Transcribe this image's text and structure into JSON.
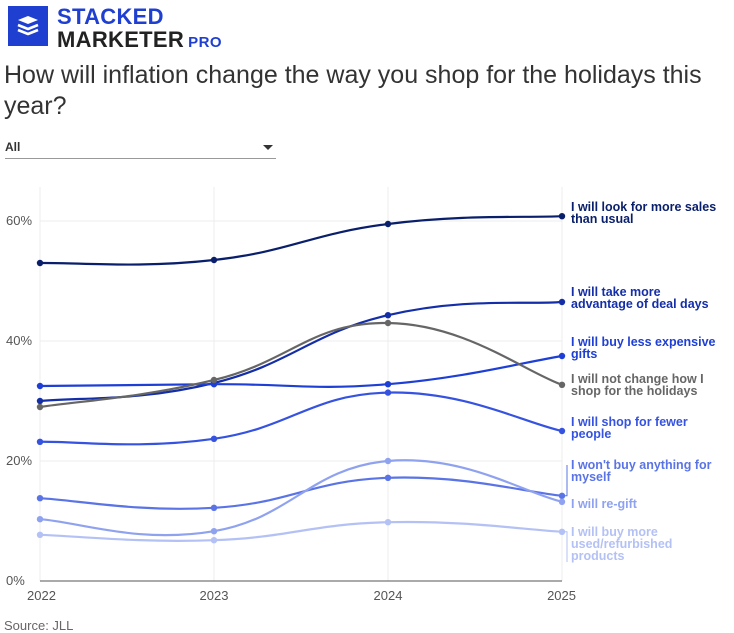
{
  "brand": {
    "line1": "STACKED",
    "line2": "MARKETER",
    "pro": "PRO"
  },
  "title": "How will inflation change the way you shop for the holidays this year?",
  "filter": {
    "selected": "All"
  },
  "source": "Source: JLL",
  "chart_data": {
    "type": "line",
    "title": "How will inflation change the way you shop for the holidays this year?",
    "xlabel": "",
    "ylabel": "",
    "x": [
      "2022",
      "2023",
      "2024",
      "2025"
    ],
    "ylim": [
      0,
      65
    ],
    "yticks": [
      0,
      20,
      40,
      60
    ],
    "ytick_labels": [
      "0%",
      "20%",
      "40%",
      "60%"
    ],
    "grid": true,
    "series": [
      {
        "name": "I will look for more sales than usual",
        "label_lines": [
          "I will look for more sales",
          "than usual"
        ],
        "color": "#0a1f6b",
        "values": [
          53,
          53.5,
          59.5,
          60.8
        ]
      },
      {
        "name": "I will take more advantage of deal days",
        "label_lines": [
          "I will take more",
          "advantage of deal days"
        ],
        "color": "#142ea8",
        "values": [
          30,
          33,
          44.3,
          46.5
        ]
      },
      {
        "name": "I will buy less expensive gifts",
        "label_lines": [
          "I will buy less expensive",
          "gifts"
        ],
        "color": "#1e3fd6",
        "values": [
          32.5,
          32.8,
          32.8,
          37.5
        ]
      },
      {
        "name": "I will not change how I shop for the holidays",
        "label_lines": [
          "I will not change how I",
          "shop for the holidays"
        ],
        "color": "#666666",
        "values": [
          29,
          33.5,
          43,
          32.7
        ]
      },
      {
        "name": "I will shop for fewer people",
        "label_lines": [
          "I will shop for fewer",
          "people"
        ],
        "color": "#3553e0",
        "values": [
          23.2,
          23.7,
          31.4,
          25
        ]
      },
      {
        "name": "I won't buy anything for myself",
        "label_lines": [
          "I won't buy anything for",
          "myself"
        ],
        "color": "#5a74e6",
        "values": [
          13.8,
          12.2,
          17.2,
          14.2
        ]
      },
      {
        "name": "I will re-gift",
        "label_lines": [
          "I will re-gift"
        ],
        "color": "#8fa2ef",
        "values": [
          10.3,
          8.3,
          20,
          13.2
        ]
      },
      {
        "name": "I will buy more used/refurbished products",
        "label_lines": [
          "I will buy more",
          "used/refurbished",
          "products"
        ],
        "color": "#b4c1f5",
        "values": [
          7.7,
          6.8,
          9.8,
          8.2
        ]
      }
    ]
  }
}
